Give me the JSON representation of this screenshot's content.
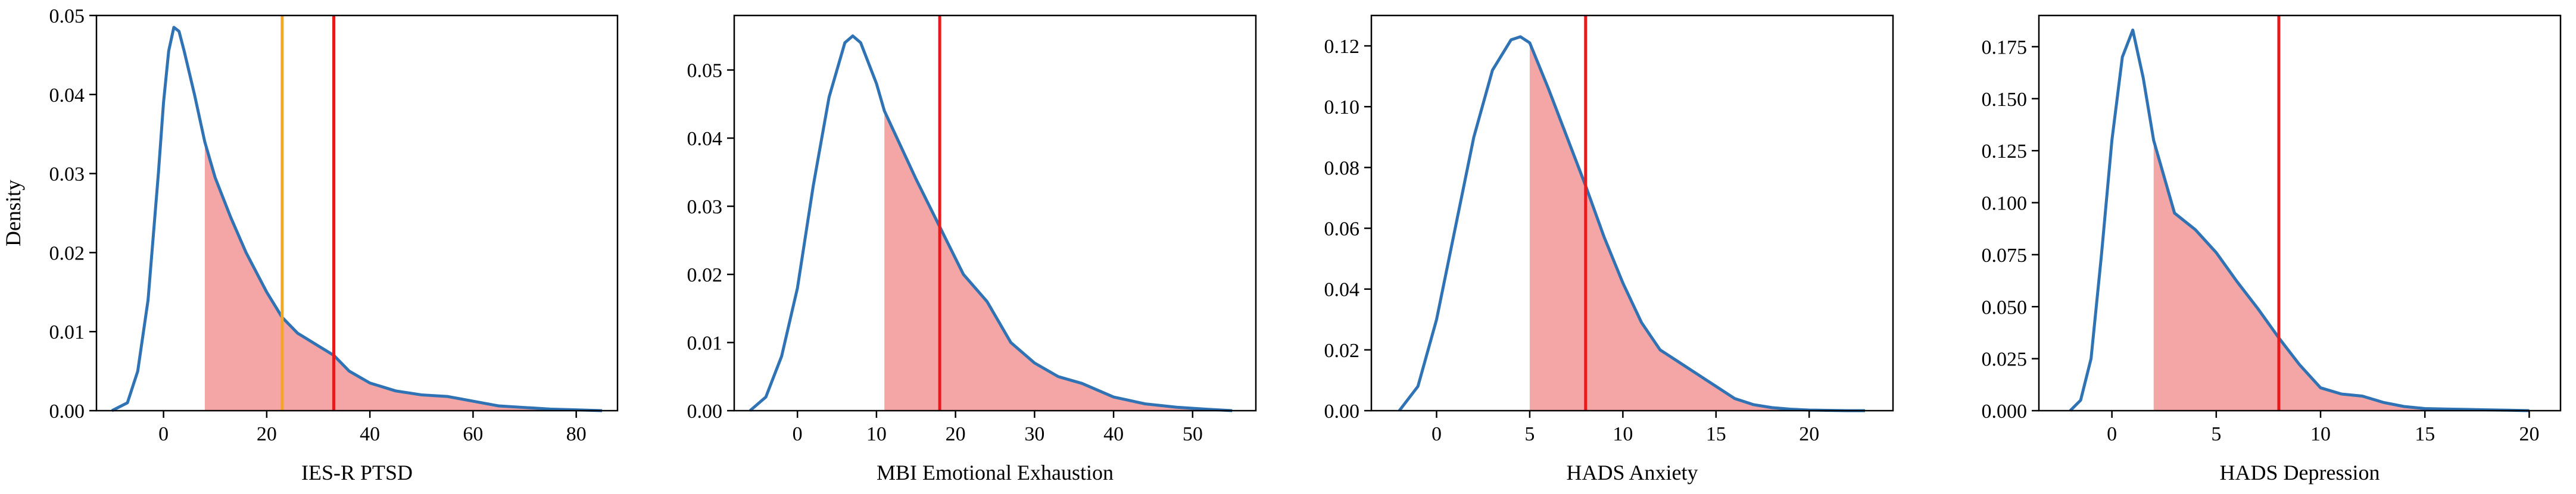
{
  "figure": {
    "ylabel": "Density"
  },
  "chart_data": [
    {
      "type": "line",
      "xlabel": "IES-R PTSD",
      "ylabel": "Density",
      "xlim": [
        -13,
        88
      ],
      "ylim": [
        0,
        0.05
      ],
      "xticks": [
        0,
        20,
        40,
        60,
        80
      ],
      "yticks": [
        0.0,
        0.01,
        0.02,
        0.03,
        0.04,
        0.05
      ],
      "ytick_decimals": 2,
      "shade_from": 8,
      "vlines": [
        {
          "x": 23,
          "color": "#f5a623"
        },
        {
          "x": 33,
          "color": "#e8191b"
        }
      ],
      "density": {
        "x": [
          -10,
          -7,
          -5,
          -3,
          -1,
          0,
          1,
          2,
          3,
          4,
          6,
          8,
          10,
          13,
          16,
          20,
          23,
          26,
          30,
          33,
          36,
          40,
          45,
          50,
          55,
          60,
          65,
          70,
          75,
          80,
          85
        ],
        "y": [
          0.0,
          0.001,
          0.005,
          0.014,
          0.03,
          0.039,
          0.0455,
          0.0485,
          0.048,
          0.0455,
          0.04,
          0.034,
          0.0295,
          0.0245,
          0.02,
          0.015,
          0.0118,
          0.0098,
          0.0082,
          0.007,
          0.005,
          0.0035,
          0.0025,
          0.002,
          0.0018,
          0.0012,
          0.0006,
          0.0004,
          0.0002,
          0.0001,
          0.0
        ]
      }
    },
    {
      "type": "line",
      "xlabel": "MBI Emotional Exhaustion",
      "ylabel": "",
      "xlim": [
        -8,
        58
      ],
      "ylim": [
        0,
        0.058
      ],
      "xticks": [
        0,
        10,
        20,
        30,
        40,
        50
      ],
      "yticks": [
        0.0,
        0.01,
        0.02,
        0.03,
        0.04,
        0.05
      ],
      "ytick_decimals": 2,
      "shade_from": 11,
      "vlines": [
        {
          "x": 18,
          "color": "#e8191b"
        }
      ],
      "density": {
        "x": [
          -6,
          -4,
          -2,
          0,
          2,
          4,
          6,
          7,
          8,
          10,
          11,
          13,
          15,
          18,
          21,
          24,
          27,
          30,
          33,
          36,
          40,
          44,
          48,
          52,
          55
        ],
        "y": [
          0.0,
          0.002,
          0.008,
          0.018,
          0.033,
          0.046,
          0.054,
          0.055,
          0.054,
          0.048,
          0.044,
          0.039,
          0.034,
          0.027,
          0.02,
          0.016,
          0.01,
          0.007,
          0.005,
          0.004,
          0.002,
          0.001,
          0.0005,
          0.0002,
          0.0
        ]
      }
    },
    {
      "type": "line",
      "xlabel": "HADS Anxiety",
      "ylabel": "",
      "xlim": [
        -3.5,
        24.5
      ],
      "ylim": [
        0,
        0.13
      ],
      "xticks": [
        0,
        5,
        10,
        15,
        20
      ],
      "yticks": [
        0.0,
        0.02,
        0.04,
        0.06,
        0.08,
        0.1,
        0.12
      ],
      "ytick_decimals": 2,
      "shade_from": 5,
      "vlines": [
        {
          "x": 8,
          "color": "#e8191b"
        }
      ],
      "density": {
        "x": [
          -2,
          -1,
          0,
          1,
          2,
          3,
          4,
          4.5,
          5,
          6,
          7,
          8,
          9,
          10,
          11,
          12,
          13,
          14,
          15,
          16,
          17,
          18,
          19,
          20,
          21,
          22,
          23
        ],
        "y": [
          0.0,
          0.008,
          0.03,
          0.06,
          0.09,
          0.112,
          0.122,
          0.123,
          0.121,
          0.106,
          0.09,
          0.074,
          0.057,
          0.042,
          0.029,
          0.02,
          0.016,
          0.012,
          0.008,
          0.004,
          0.002,
          0.001,
          0.0005,
          0.0002,
          0.0001,
          0.0,
          0.0
        ]
      }
    },
    {
      "type": "line",
      "xlabel": "HADS Depression",
      "ylabel": "",
      "xlim": [
        -3.5,
        21.5
      ],
      "ylim": [
        0,
        0.19
      ],
      "xticks": [
        0,
        5,
        10,
        15,
        20
      ],
      "yticks": [
        0.0,
        0.025,
        0.05,
        0.075,
        0.1,
        0.125,
        0.15,
        0.175
      ],
      "ytick_decimals": 3,
      "shade_from": 2,
      "vlines": [
        {
          "x": 8,
          "color": "#e8191b"
        }
      ],
      "density": {
        "x": [
          -2,
          -1.5,
          -1,
          -0.5,
          0,
          0.5,
          1,
          1.5,
          2,
          3,
          4,
          5,
          6,
          7,
          8,
          9,
          10,
          11,
          12,
          13,
          14,
          15,
          16,
          17,
          18,
          19,
          20
        ],
        "y": [
          0.0,
          0.005,
          0.025,
          0.075,
          0.13,
          0.17,
          0.183,
          0.16,
          0.13,
          0.095,
          0.087,
          0.076,
          0.062,
          0.049,
          0.035,
          0.022,
          0.011,
          0.008,
          0.007,
          0.004,
          0.002,
          0.001,
          0.0008,
          0.0006,
          0.0004,
          0.0002,
          0.0
        ]
      }
    }
  ]
}
